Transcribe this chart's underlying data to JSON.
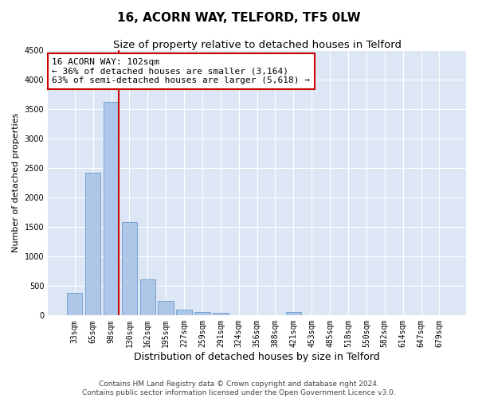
{
  "title": "16, ACORN WAY, TELFORD, TF5 0LW",
  "subtitle": "Size of property relative to detached houses in Telford",
  "xlabel": "Distribution of detached houses by size in Telford",
  "ylabel": "Number of detached properties",
  "categories": [
    "33sqm",
    "65sqm",
    "98sqm",
    "130sqm",
    "162sqm",
    "195sqm",
    "227sqm",
    "259sqm",
    "291sqm",
    "324sqm",
    "356sqm",
    "388sqm",
    "421sqm",
    "453sqm",
    "485sqm",
    "518sqm",
    "550sqm",
    "582sqm",
    "614sqm",
    "647sqm",
    "679sqm"
  ],
  "values": [
    380,
    2420,
    3620,
    1580,
    610,
    250,
    105,
    65,
    50,
    0,
    0,
    0,
    60,
    0,
    0,
    0,
    0,
    0,
    0,
    0,
    0
  ],
  "bar_color": "#aec6e8",
  "bar_edgecolor": "#5b8fc4",
  "vline_x_index": 2,
  "vline_color": "#cc0000",
  "ylim": [
    0,
    4500
  ],
  "yticks": [
    0,
    500,
    1000,
    1500,
    2000,
    2500,
    3000,
    3500,
    4000,
    4500
  ],
  "annotation_text": "16 ACORN WAY: 102sqm\n← 36% of detached houses are smaller (3,164)\n63% of semi-detached houses are larger (5,618) →",
  "annotation_box_edgecolor": "#cc0000",
  "background_color": "#dce6f5",
  "footer_text": "Contains HM Land Registry data © Crown copyright and database right 2024.\nContains public sector information licensed under the Open Government Licence v3.0.",
  "title_fontsize": 11,
  "subtitle_fontsize": 9.5,
  "xlabel_fontsize": 9,
  "ylabel_fontsize": 8,
  "tick_fontsize": 7,
  "annotation_fontsize": 8,
  "footer_fontsize": 6.5
}
